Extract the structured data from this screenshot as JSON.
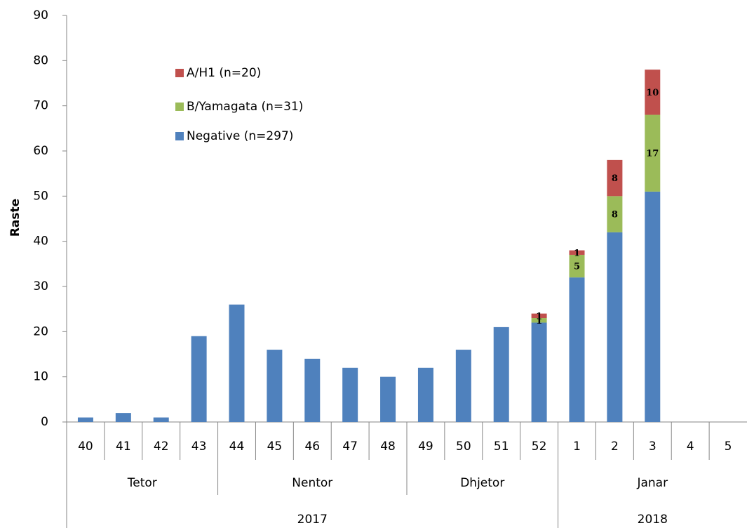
{
  "chart_data": {
    "type": "stacked_bar",
    "y_label": "Raste",
    "categories": [
      "40",
      "41",
      "42",
      "43",
      "44",
      "45",
      "46",
      "47",
      "48",
      "49",
      "50",
      "51",
      "52",
      "1",
      "2",
      "3",
      "4",
      "5"
    ],
    "months": [
      "Tetor",
      "Tetor",
      "Tetor",
      "Tetor",
      "Nentor",
      "Nentor",
      "Nentor",
      "Nentor",
      "Nentor",
      "Dhjetor",
      "Dhjetor",
      "Dhjetor",
      "Dhjetor",
      "Janar",
      "Janar",
      "Janar",
      "Janar",
      "Janar"
    ],
    "years": [
      "2017",
      "2017",
      "2017",
      "2017",
      "2017",
      "2017",
      "2017",
      "2017",
      "2017",
      "2017",
      "2017",
      "2017",
      "2017",
      "2018",
      "2018",
      "2018",
      "2018",
      "2018"
    ],
    "series": [
      {
        "name": "Negative (n=297)",
        "color": "#4f81bd",
        "data_labels": false,
        "values": [
          1,
          2,
          1,
          19,
          26,
          16,
          14,
          12,
          10,
          12,
          16,
          21,
          22,
          32,
          42,
          51,
          null,
          null
        ]
      },
      {
        "name": "B/Yamagata (n=31)",
        "color": "#9bbb59",
        "data_labels": true,
        "values": [
          null,
          null,
          null,
          null,
          null,
          null,
          null,
          null,
          null,
          null,
          null,
          null,
          1,
          5,
          8,
          17,
          null,
          null
        ]
      },
      {
        "name": "A/H1 (n=20)",
        "color": "#c0504d",
        "data_labels": true,
        "values": [
          null,
          null,
          null,
          null,
          null,
          null,
          null,
          null,
          null,
          null,
          null,
          null,
          1,
          1,
          8,
          10,
          null,
          null
        ]
      }
    ],
    "ylim": [
      0,
      90
    ],
    "yticks": [
      0,
      10,
      20,
      30,
      40,
      50,
      60,
      70,
      80,
      90
    ],
    "grid": false
  }
}
